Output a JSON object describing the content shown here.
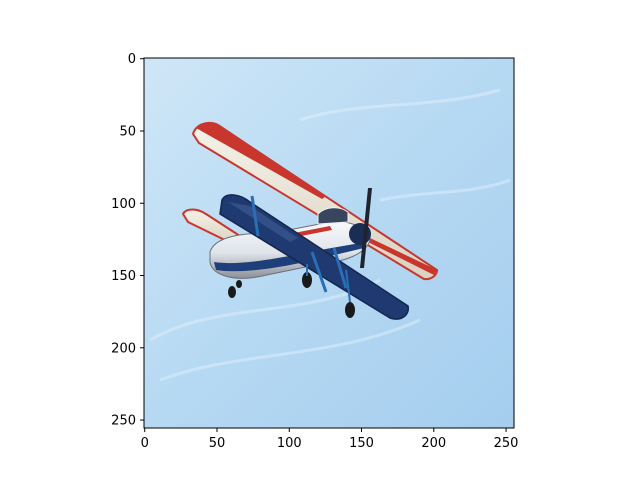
{
  "figure": {
    "image_description_icon": "biplane-photo",
    "colors": {
      "sky_light": "#cfe6f7",
      "sky_mid": "#a9d0ef",
      "wing_cream": "#f1ece0",
      "wing_red": "#c8362d",
      "hull_blue": "#1f3f7a",
      "hull_white": "#f4f6f8"
    }
  },
  "chart_data": {
    "type": "image",
    "xlim": [
      -0.5,
      255.5
    ],
    "ylim": [
      255.5,
      -0.5
    ],
    "x_ticks": [
      0,
      50,
      100,
      150,
      200,
      250
    ],
    "y_ticks": [
      0,
      50,
      100,
      150,
      200,
      250
    ],
    "x_tick_labels": [
      "0",
      "50",
      "100",
      "150",
      "200",
      "250"
    ],
    "y_tick_labels": [
      "0",
      "50",
      "100",
      "150",
      "200",
      "250"
    ],
    "grid": false
  }
}
